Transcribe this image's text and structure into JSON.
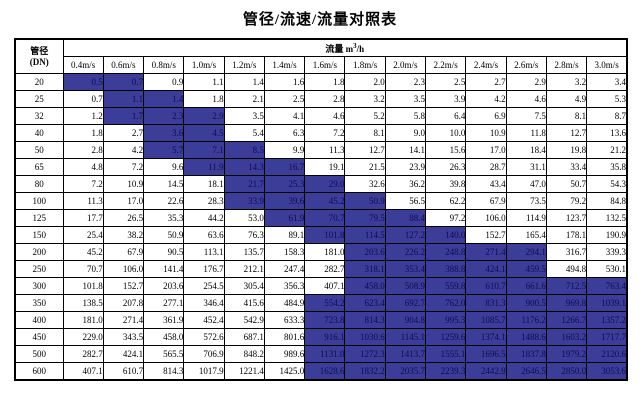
{
  "page": {
    "title": "管径/流速/流量对照表"
  },
  "table": {
    "corner": {
      "line1": "管径",
      "line2": "(DN)"
    },
    "flow_header": {
      "prefix": "流量 m",
      "sup": "3",
      "suffix": "/h"
    },
    "velocity_columns": [
      "0.4m/s",
      "0.6m/s",
      "0.8m/s",
      "1.0m/s",
      "1.2m/s",
      "1.4m/s",
      "1.6m/s",
      "1.8m/s",
      "2.0m/s",
      "2.2m/s",
      "2.4m/s",
      "2.6m/s",
      "2.8m/s",
      "3.0m/s"
    ],
    "highlight_color": "#3c3c99",
    "highlight_text_color": "#0d0d55",
    "border_color": "#000000",
    "rows": [
      {
        "dn": "20",
        "values": [
          "0.5",
          "0.7",
          "0.9",
          "1.1",
          "1.4",
          "1.6",
          "1.8",
          "2.0",
          "2.3",
          "2.5",
          "2.7",
          "2.9",
          "3.2",
          "3.4"
        ],
        "highlighted": [
          0,
          1
        ]
      },
      {
        "dn": "25",
        "values": [
          "0.7",
          "1.1",
          "1.4",
          "1.8",
          "2.1",
          "2.5",
          "2.8",
          "3.2",
          "3.5",
          "3.9",
          "4.2",
          "4.6",
          "4.9",
          "5.3"
        ],
        "highlighted": [
          1,
          2
        ]
      },
      {
        "dn": "32",
        "values": [
          "1.2",
          "1.7",
          "2.3",
          "2.9",
          "3.5",
          "4.1",
          "4.6",
          "5.2",
          "5.8",
          "6.4",
          "6.9",
          "7.5",
          "8.1",
          "8.7"
        ],
        "highlighted": [
          1,
          2,
          3
        ]
      },
      {
        "dn": "40",
        "values": [
          "1.8",
          "2.7",
          "3.6",
          "4.5",
          "5.4",
          "6.3",
          "7.2",
          "8.1",
          "9.0",
          "10.0",
          "10.9",
          "11.8",
          "12.7",
          "13.6"
        ],
        "highlighted": [
          2,
          3
        ]
      },
      {
        "dn": "50",
        "values": [
          "2.8",
          "4.2",
          "5.7",
          "7.1",
          "8.5",
          "9.9",
          "11.3",
          "12.7",
          "14.1",
          "15.6",
          "17.0",
          "18.4",
          "19.8",
          "21.2"
        ],
        "highlighted": [
          2,
          3,
          4
        ]
      },
      {
        "dn": "65",
        "values": [
          "4.8",
          "7.2",
          "9.6",
          "11.9",
          "14.3",
          "16.7",
          "19.1",
          "21.5",
          "23.9",
          "26.3",
          "28.7",
          "31.1",
          "33.4",
          "35.8"
        ],
        "highlighted": [
          3,
          4,
          5
        ]
      },
      {
        "dn": "80",
        "values": [
          "7.2",
          "10.9",
          "14.5",
          "18.1",
          "21.7",
          "25.3",
          "29.0",
          "32.6",
          "36.2",
          "39.8",
          "43.4",
          "47.0",
          "50.7",
          "54.3"
        ],
        "highlighted": [
          4,
          5,
          6
        ]
      },
      {
        "dn": "100",
        "values": [
          "11.3",
          "17.0",
          "22.6",
          "28.3",
          "33.9",
          "39.6",
          "45.2",
          "50.9",
          "56.5",
          "62.2",
          "67.9",
          "73.5",
          "79.2",
          "84.8"
        ],
        "highlighted": [
          4,
          5,
          6,
          7
        ]
      },
      {
        "dn": "125",
        "values": [
          "17.7",
          "26.5",
          "35.3",
          "44.2",
          "53.0",
          "61.9",
          "70.7",
          "79.5",
          "88.4",
          "97.2",
          "106.0",
          "114.9",
          "123.7",
          "132.5"
        ],
        "highlighted": [
          5,
          6,
          7,
          8
        ]
      },
      {
        "dn": "150",
        "values": [
          "25.4",
          "38.2",
          "50.9",
          "63.6",
          "76.3",
          "89.1",
          "101.8",
          "114.5",
          "127.2",
          "140.0",
          "152.7",
          "165.4",
          "178.1",
          "190.9"
        ],
        "highlighted": [
          6,
          7,
          8,
          9
        ]
      },
      {
        "dn": "200",
        "values": [
          "45.2",
          "67.9",
          "90.5",
          "113.1",
          "135.7",
          "158.3",
          "181.0",
          "203.6",
          "226.2",
          "248.8",
          "271.4",
          "294.1",
          "316.7",
          "339.3"
        ],
        "highlighted": [
          7,
          8,
          9,
          10,
          11
        ]
      },
      {
        "dn": "250",
        "values": [
          "70.7",
          "106.0",
          "141.4",
          "176.7",
          "212.1",
          "247.4",
          "282.7",
          "318.1",
          "353.4",
          "388.8",
          "424.1",
          "459.5",
          "494.8",
          "530.1"
        ],
        "highlighted": [
          7,
          8,
          9,
          10,
          11
        ]
      },
      {
        "dn": "300",
        "values": [
          "101.8",
          "152.7",
          "203.6",
          "254.5",
          "305.4",
          "356.3",
          "407.1",
          "458.0",
          "508.9",
          "559.8",
          "610.7",
          "661.6",
          "712.5",
          "763.4"
        ],
        "highlighted": [
          7,
          8,
          9,
          10,
          11,
          12,
          13
        ]
      },
      {
        "dn": "350",
        "values": [
          "138.5",
          "207.8",
          "277.1",
          "346.4",
          "415.6",
          "484.9",
          "554.2",
          "623.4",
          "692.7",
          "762.0",
          "831.3",
          "900.5",
          "969.8",
          "1039.1"
        ],
        "highlighted": [
          6,
          7,
          8,
          9,
          10,
          11,
          12,
          13
        ]
      },
      {
        "dn": "400",
        "values": [
          "181.0",
          "271.4",
          "361.9",
          "452.4",
          "542.9",
          "633.3",
          "723.8",
          "814.3",
          "904.8",
          "995.3",
          "1085.7",
          "1176.2",
          "1266.7",
          "1357.2"
        ],
        "highlighted": [
          6,
          7,
          8,
          9,
          10,
          11,
          12,
          13
        ]
      },
      {
        "dn": "450",
        "values": [
          "229.0",
          "343.5",
          "458.0",
          "572.6",
          "687.1",
          "801.6",
          "916.1",
          "1030.6",
          "1145.1",
          "1259.6",
          "1374.1",
          "1488.6",
          "1603.2",
          "1717.7"
        ],
        "highlighted": [
          6,
          7,
          8,
          9,
          10,
          11,
          12,
          13
        ]
      },
      {
        "dn": "500",
        "values": [
          "282.7",
          "424.1",
          "565.5",
          "706.9",
          "848.2",
          "989.6",
          "1131.0",
          "1272.3",
          "1413.7",
          "1555.1",
          "1696.5",
          "1837.8",
          "1979.2",
          "2120.6"
        ],
        "highlighted": [
          6,
          7,
          8,
          9,
          10,
          11,
          12,
          13
        ]
      },
      {
        "dn": "600",
        "values": [
          "407.1",
          "610.7",
          "814.3",
          "1017.9",
          "1221.4",
          "1425.0",
          "1628.6",
          "1832.2",
          "2035.7",
          "2239.3",
          "2442.9",
          "2646.5",
          "2850.0",
          "3053.6"
        ],
        "highlighted": [
          6,
          7,
          8,
          9,
          10,
          11,
          12,
          13
        ]
      }
    ]
  }
}
